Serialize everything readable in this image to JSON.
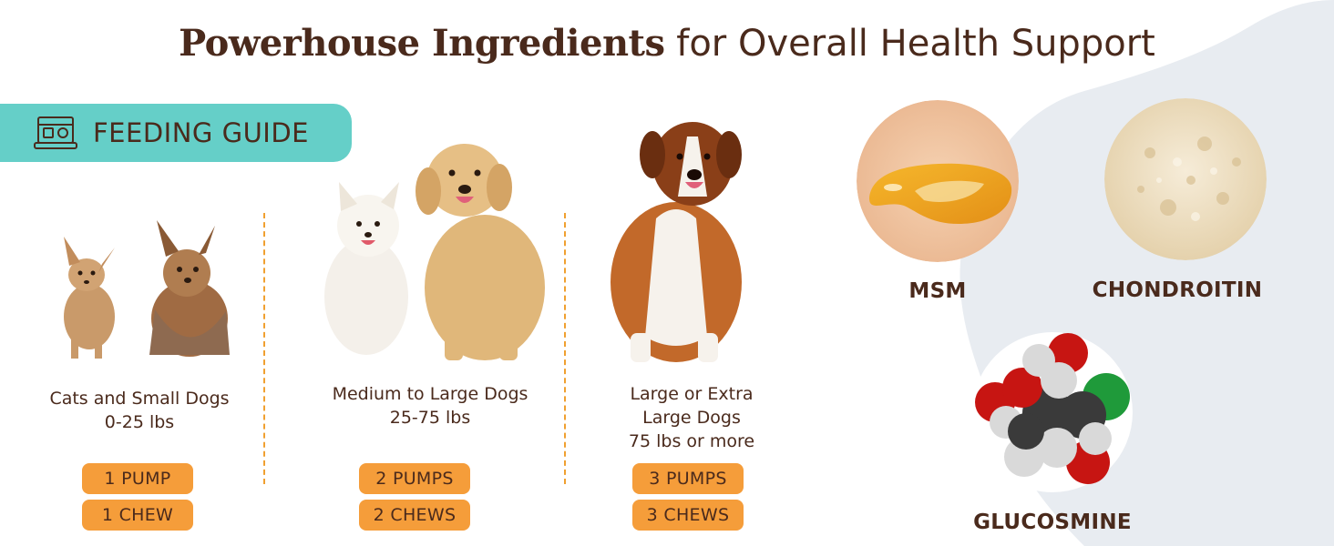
{
  "title": {
    "bold": "Powerhouse Ingredients",
    "light": "for Overall Health Support"
  },
  "feeding_guide": {
    "label": "FEEDING GUIDE",
    "icon": "feeding-bowl-icon"
  },
  "columns": [
    {
      "label_lines": [
        "Cats and Small Dogs",
        "0-25 lbs"
      ],
      "pump": "1 PUMP",
      "chew": "1 CHEW"
    },
    {
      "label_lines": [
        "Medium to Large Dogs",
        "25-75 lbs"
      ],
      "pump": "2 PUMPS",
      "chew": "2 CHEWS"
    },
    {
      "label_lines": [
        "Large or Extra",
        "Large Dogs",
        "75 lbs or more"
      ],
      "pump": "3 PUMPS",
      "chew": "3 CHEWS"
    }
  ],
  "ingredients": [
    {
      "name": "MSM"
    },
    {
      "name": "CHONDROITIN"
    },
    {
      "name": "GLUCOSMINE"
    }
  ],
  "colors": {
    "text_brown": "#4a2a1c",
    "badge_teal": "#65cfc8",
    "pill_orange": "#f59d3a",
    "divider_orange": "#f0a030",
    "blob_gray": "#e8ecf1"
  }
}
